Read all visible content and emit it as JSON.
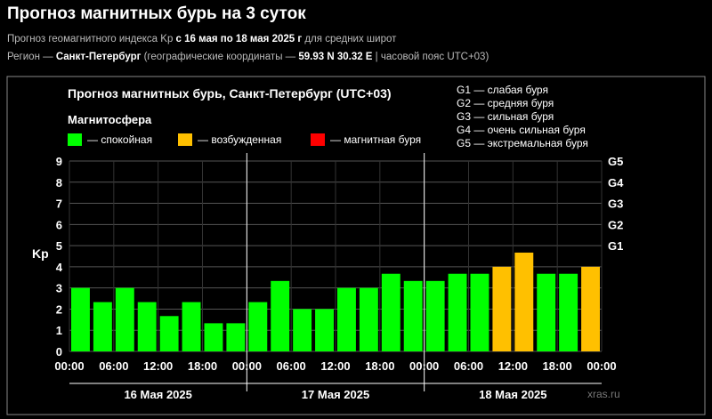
{
  "page": {
    "title": "Прогноз магнитных бурь на 3 суток",
    "subtitle_prefix": "Прогноз геомагнитного индекса Kp ",
    "subtitle_range": "с 16 мая по 18 мая 2025 г",
    "subtitle_suffix": " для средних широт",
    "region_prefix": "Регион — ",
    "region_city": "Санкт-Петербург",
    "region_mid": " (географические координаты — ",
    "region_coords": "59.93 N 30.32 E",
    "region_suffix": " | часовой пояс UTC+03)"
  },
  "colors": {
    "calm": "#00ff00",
    "excited": "#ffc000",
    "storm": "#ff0000",
    "frame": "#888888",
    "grid": "#555555",
    "divider": "#ffffff"
  },
  "chart_data": {
    "type": "bar",
    "title": "Прогноз магнитных бурь, Санкт-Петербург (UTC+03)",
    "ylabel": "Kp",
    "ylim": [
      0,
      9
    ],
    "yticks": [
      "0",
      "1",
      "2",
      "3",
      "4",
      "5",
      "6",
      "7",
      "8",
      "9"
    ],
    "g_levels": [
      {
        "label": "G1",
        "kp": 5
      },
      {
        "label": "G2",
        "kp": 6
      },
      {
        "label": "G3",
        "kp": 7
      },
      {
        "label": "G4",
        "kp": 8
      },
      {
        "label": "G5",
        "kp": 9
      }
    ],
    "legend_title": "Магнитосфера",
    "legend": [
      {
        "label": "— спокойная",
        "level": "calm"
      },
      {
        "label": "— возбужденная",
        "level": "excited"
      },
      {
        "label": "— магнитная буря",
        "level": "storm"
      }
    ],
    "g_legend": [
      "G1 — слабая буря",
      "G2 — средняя буря",
      "G3 — сильная буря",
      "G4 — очень сильная буря",
      "G5 — экстремальная буря"
    ],
    "days": [
      "16 Мая 2025",
      "17 Мая 2025",
      "18 Мая 2025"
    ],
    "xticks": [
      "00:00",
      "06:00",
      "12:00",
      "18:00",
      "00:00",
      "06:00",
      "12:00",
      "18:00",
      "00:00",
      "06:00",
      "12:00",
      "18:00",
      "00:00"
    ],
    "values": [
      3.0,
      2.33,
      3.0,
      2.33,
      1.67,
      2.33,
      1.33,
      1.33,
      2.33,
      3.33,
      2.0,
      2.0,
      3.0,
      3.0,
      3.67,
      3.33,
      3.33,
      3.67,
      3.67,
      4.0,
      4.67,
      3.67,
      3.67,
      4.0
    ],
    "levels": [
      "calm",
      "calm",
      "calm",
      "calm",
      "calm",
      "calm",
      "calm",
      "calm",
      "calm",
      "calm",
      "calm",
      "calm",
      "calm",
      "calm",
      "calm",
      "calm",
      "calm",
      "calm",
      "calm",
      "excited",
      "excited",
      "calm",
      "calm",
      "excited"
    ],
    "watermark": "xras.ru"
  }
}
